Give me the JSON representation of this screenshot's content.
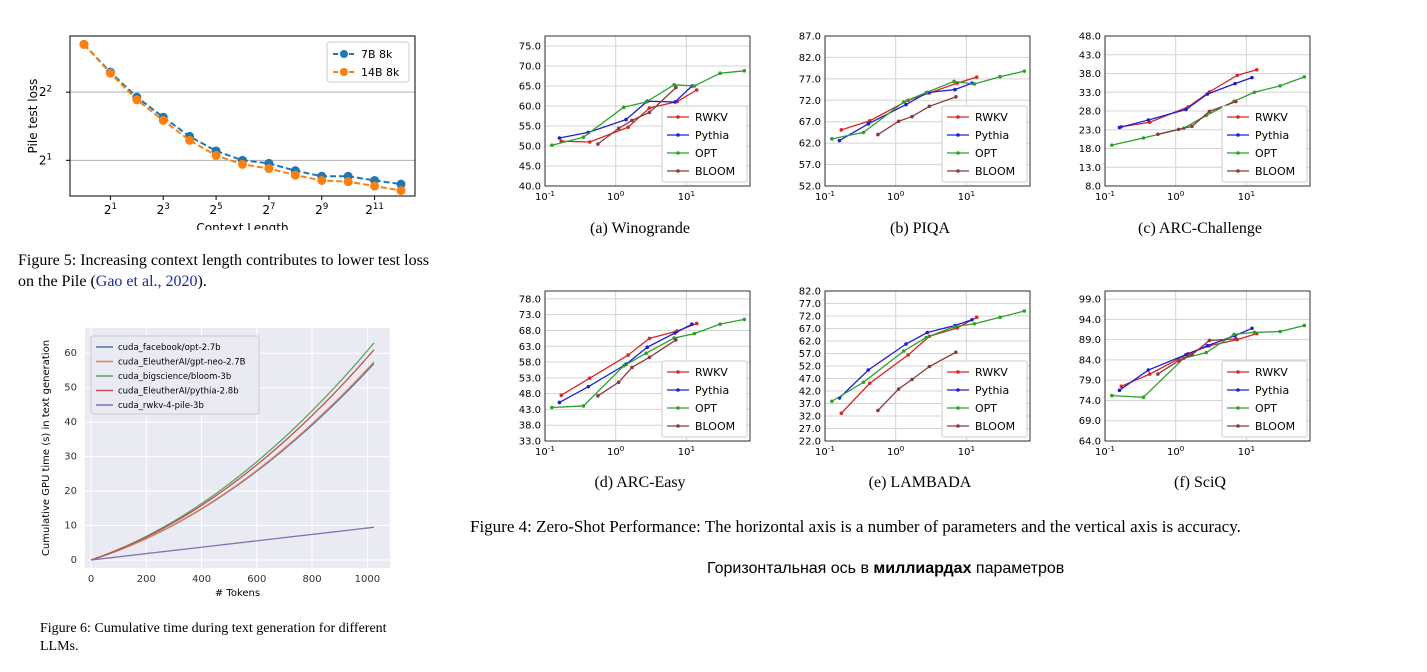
{
  "fig5": {
    "caption_label": "Figure 5:",
    "caption_text": "Increasing context length contributes to lower test loss on the Pile (",
    "caption_cite": "Gao et al., 2020",
    "caption_end": ")."
  },
  "fig6": {
    "caption_label": "Figure 6:",
    "caption_text": "Cumulative time during text generation for different LLMs."
  },
  "fig4": {
    "caption": "Figure 4: Zero-Shot Performance: The horizontal axis is a number of parameters and the vertical axis is accuracy."
  },
  "note": {
    "prefix": "Горизонтальная ось в ",
    "bold": "миллиардах",
    "suffix": " параметров"
  },
  "colors": {
    "rwkv": "#d62728",
    "pythia": "#1f1fd6",
    "opt": "#2ca02c",
    "bloom": "#8c3a3a",
    "blue7b": "#1f77b4",
    "orange14b": "#ff7f0e",
    "opt27": "#4c72b0",
    "neo": "#dd8452",
    "bloom3": "#55a868",
    "pythia28": "#c44e52",
    "rwkv3": "#8172b3"
  },
  "chart_data": [
    {
      "id": "fig5",
      "type": "line",
      "xlabel": "Context Length",
      "ylabel": "Pile test loss",
      "xscale": "log2",
      "yscale": "log2",
      "x_ticks": [
        "2^1",
        "2^3",
        "2^5",
        "2^7",
        "2^9",
        "2^11"
      ],
      "y_ticks": [
        "2^1",
        "2^2"
      ],
      "x": [
        1,
        2,
        4,
        8,
        16,
        32,
        64,
        128,
        256,
        512,
        1024,
        2048,
        4096
      ],
      "series": [
        {
          "name": "7B 8k",
          "values": [
            6.5,
            4.9,
            3.8,
            3.1,
            2.55,
            2.2,
            2.0,
            1.94,
            1.8,
            1.7,
            1.7,
            1.63,
            1.57
          ]
        },
        {
          "name": "14B 8k",
          "values": [
            6.5,
            4.85,
            3.7,
            3.0,
            2.45,
            2.1,
            1.92,
            1.84,
            1.72,
            1.63,
            1.61,
            1.54,
            1.47
          ]
        }
      ],
      "legend": "top-right",
      "grid": "horizontal"
    },
    {
      "id": "fig6",
      "type": "line",
      "xlabel": "# Tokens",
      "ylabel": "Cumulative GPU time (s) in text generation",
      "xlim": [
        0,
        1024
      ],
      "ylim": [
        0,
        65
      ],
      "x_ticks": [
        0,
        200,
        400,
        600,
        800,
        1000
      ],
      "y_ticks": [
        0,
        10,
        20,
        30,
        40,
        50,
        60
      ],
      "series": [
        {
          "name": "cuda_facebook/opt-2.7b",
          "final": 57
        },
        {
          "name": "cuda_EleutherAI/gpt-neo-2.7B",
          "final": 57.5
        },
        {
          "name": "cuda_bigscience/bloom-3b",
          "final": 63
        },
        {
          "name": "cuda_EleutherAI/pythia-2.8b",
          "final": 61
        },
        {
          "name": "cuda_rwkv-4-pile-3b",
          "final": 9.5
        }
      ],
      "legend": "top-left",
      "grid": "both"
    },
    {
      "id": "winogrande",
      "subcaption": "(a) Winogrande",
      "type": "line",
      "xscale": "log",
      "ylim": [
        40,
        77.5
      ],
      "y_ticks": [
        "40.0",
        "45.0",
        "50.0",
        "55.0",
        "60.0",
        "65.0",
        "70.0",
        "75.0"
      ],
      "x_ticks": [
        "10^-1",
        "10^0",
        "10^1"
      ],
      "series": [
        {
          "name": "RWKV",
          "x": [
            0.17,
            0.43,
            1.5,
            3,
            7.4,
            14
          ],
          "y": [
            51.2,
            51.0,
            54.7,
            59.5,
            61.1,
            64.0
          ]
        },
        {
          "name": "Pythia",
          "x": [
            0.16,
            0.41,
            1.4,
            2.8,
            6.9,
            12
          ],
          "y": [
            52.0,
            53.4,
            56.6,
            61.2,
            61.0,
            65.0
          ]
        },
        {
          "name": "OPT",
          "x": [
            0.125,
            0.35,
            1.3,
            2.7,
            6.7,
            13,
            30,
            66
          ],
          "y": [
            50.2,
            52.2,
            59.7,
            61.0,
            65.3,
            65.0,
            68.2,
            68.8
          ]
        },
        {
          "name": "BLOOM",
          "x": [
            0.56,
            1.1,
            1.7,
            3,
            7.1
          ],
          "y": [
            50.5,
            54.4,
            56.4,
            58.4,
            64.6
          ]
        }
      ]
    },
    {
      "id": "piqa",
      "subcaption": "(b) PIQA",
      "type": "line",
      "xscale": "log",
      "ylim": [
        52,
        87
      ],
      "y_ticks": [
        "52.0",
        "57.0",
        "62.0",
        "67.0",
        "72.0",
        "77.0",
        "82.0",
        "87.0"
      ],
      "x_ticks": [
        "10^-1",
        "10^0",
        "10^1"
      ],
      "series": [
        {
          "name": "RWKV",
          "x": [
            0.17,
            0.43,
            1.5,
            3,
            7.4,
            14
          ],
          "y": [
            65.1,
            67.2,
            72.0,
            73.7,
            76.0,
            77.4
          ]
        },
        {
          "name": "Pythia",
          "x": [
            0.16,
            0.41,
            1.4,
            2.8,
            6.9,
            12
          ],
          "y": [
            62.6,
            66.5,
            71.0,
            73.8,
            74.5,
            76.0
          ]
        },
        {
          "name": "OPT",
          "x": [
            0.125,
            0.35,
            1.3,
            2.7,
            6.7,
            13,
            30,
            66
          ],
          "y": [
            63.0,
            64.5,
            71.6,
            73.8,
            76.4,
            75.8,
            77.5,
            78.8
          ]
        },
        {
          "name": "BLOOM",
          "x": [
            0.56,
            1.1,
            1.7,
            3,
            7.1
          ],
          "y": [
            64.0,
            67.1,
            68.2,
            70.6,
            72.8
          ]
        }
      ]
    },
    {
      "id": "arc_challenge",
      "subcaption": "(c) ARC-Challenge",
      "type": "line",
      "xscale": "log",
      "ylim": [
        8,
        48
      ],
      "y_ticks": [
        "8.0",
        "13.0",
        "18.0",
        "23.0",
        "28.0",
        "33.0",
        "38.0",
        "43.0",
        "48.0"
      ],
      "x_ticks": [
        "10^-1",
        "10^0",
        "10^1"
      ],
      "series": [
        {
          "name": "RWKV",
          "x": [
            0.17,
            0.43,
            1.5,
            3,
            7.4,
            14
          ],
          "y": [
            23.8,
            25.0,
            29.1,
            33.1,
            37.5,
            39.0
          ]
        },
        {
          "name": "Pythia",
          "x": [
            0.16,
            0.41,
            1.4,
            2.8,
            6.9,
            12
          ],
          "y": [
            23.6,
            25.6,
            28.4,
            32.5,
            35.3,
            36.9
          ]
        },
        {
          "name": "OPT",
          "x": [
            0.125,
            0.35,
            1.3,
            2.7,
            6.7,
            13,
            30,
            66
          ],
          "y": [
            18.9,
            20.8,
            23.4,
            26.8,
            30.6,
            33.0,
            34.7,
            37.1
          ]
        },
        {
          "name": "BLOOM",
          "x": [
            0.56,
            1.1,
            1.7,
            3,
            7.1
          ],
          "y": [
            21.8,
            23.1,
            23.9,
            27.9,
            30.5
          ]
        }
      ]
    },
    {
      "id": "arc_easy",
      "subcaption": "(d) ARC-Easy",
      "type": "line",
      "xscale": "log",
      "ylim": [
        33,
        80.5
      ],
      "y_ticks": [
        "33.0",
        "38.0",
        "43.0",
        "48.0",
        "53.0",
        "58.0",
        "63.0",
        "68.0",
        "73.0",
        "78.0"
      ],
      "x_ticks": [
        "10^-1",
        "10^0",
        "10^1"
      ],
      "series": [
        {
          "name": "RWKV",
          "x": [
            0.17,
            0.43,
            1.5,
            3,
            7.4,
            14
          ],
          "y": [
            47.5,
            52.9,
            60.2,
            65.5,
            67.8,
            70.2
          ]
        },
        {
          "name": "Pythia",
          "x": [
            0.16,
            0.41,
            1.4,
            2.8,
            6.9,
            12
          ],
          "y": [
            45.2,
            50.2,
            57.3,
            62.7,
            67.2,
            70.0
          ]
        },
        {
          "name": "OPT",
          "x": [
            0.125,
            0.35,
            1.3,
            2.7,
            6.7,
            13,
            30,
            66
          ],
          "y": [
            43.6,
            44.1,
            56.8,
            60.8,
            65.6,
            67.0,
            70.0,
            71.5
          ]
        },
        {
          "name": "BLOOM",
          "x": [
            0.56,
            1.1,
            1.7,
            3,
            7.1
          ],
          "y": [
            47.3,
            51.6,
            56.3,
            59.5,
            65.0
          ]
        }
      ]
    },
    {
      "id": "lambada",
      "subcaption": "(e) LAMBADA",
      "type": "line",
      "xscale": "log",
      "ylim": [
        22,
        82
      ],
      "y_ticks": [
        "22.0",
        "27.0",
        "32.0",
        "37.0",
        "42.0",
        "47.0",
        "52.0",
        "57.0",
        "62.0",
        "67.0",
        "72.0",
        "77.0",
        "82.0"
      ],
      "x_ticks": [
        "10^-1",
        "10^0",
        "10^1"
      ],
      "series": [
        {
          "name": "RWKV",
          "x": [
            0.17,
            0.43,
            1.5,
            3,
            7.4,
            14
          ],
          "y": [
            33.1,
            45.1,
            56.4,
            63.9,
            67.2,
            71.5
          ]
        },
        {
          "name": "Pythia",
          "x": [
            0.16,
            0.41,
            1.4,
            2.8,
            6.9,
            12
          ],
          "y": [
            39.2,
            50.4,
            60.8,
            65.4,
            68.2,
            70.5
          ]
        },
        {
          "name": "OPT",
          "x": [
            0.125,
            0.35,
            1.3,
            2.7,
            6.7,
            13,
            30,
            66
          ],
          "y": [
            37.9,
            45.5,
            58.0,
            63.4,
            67.7,
            68.9,
            71.5,
            74.0
          ]
        },
        {
          "name": "BLOOM",
          "x": [
            0.56,
            1.1,
            1.7,
            3,
            7.1
          ],
          "y": [
            34.2,
            42.8,
            46.6,
            51.8,
            57.5
          ]
        }
      ]
    },
    {
      "id": "sciq",
      "subcaption": "(f) SciQ",
      "type": "line",
      "xscale": "log",
      "ylim": [
        64,
        101
      ],
      "y_ticks": [
        "64.0",
        "69.0",
        "74.0",
        "79.0",
        "84.0",
        "89.0",
        "94.0",
        "99.0"
      ],
      "x_ticks": [
        "10^-1",
        "10^0",
        "10^1"
      ],
      "series": [
        {
          "name": "RWKV",
          "x": [
            0.17,
            0.43,
            1.5,
            3,
            7.4,
            14
          ],
          "y": [
            77.5,
            80.5,
            85.5,
            87.5,
            89.0,
            90.5
          ]
        },
        {
          "name": "Pythia",
          "x": [
            0.16,
            0.41,
            1.4,
            2.8,
            6.9,
            12
          ],
          "y": [
            76.5,
            81.5,
            85.3,
            87.5,
            90.0,
            91.8
          ]
        },
        {
          "name": "OPT",
          "x": [
            0.125,
            0.35,
            1.3,
            2.7,
            6.7,
            13,
            30,
            66
          ],
          "y": [
            75.2,
            74.8,
            84.4,
            85.8,
            90.3,
            90.8,
            91.0,
            92.5
          ]
        },
        {
          "name": "BLOOM",
          "x": [
            0.56,
            1.1,
            1.7,
            3,
            7.1
          ],
          "y": [
            80.5,
            83.8,
            85.3,
            88.8,
            89.2
          ]
        }
      ]
    }
  ]
}
